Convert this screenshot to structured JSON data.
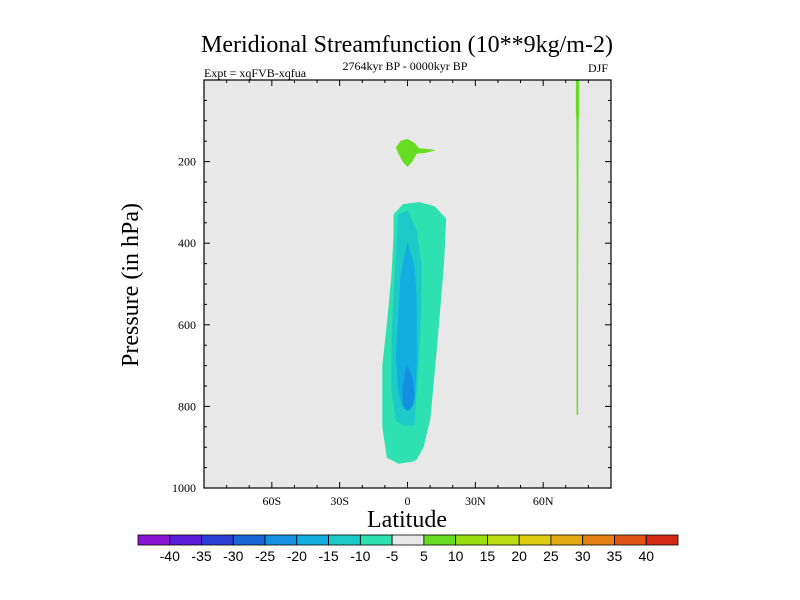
{
  "chart_data": {
    "type": "contour",
    "title": "Meridional Streamfunction (10**9kg/m-2)",
    "subtitle_left": "Expt = xqFVB-xqfua",
    "subtitle_center": "2764kyr BP - 0000kyr BP",
    "subtitle_right": "DJF",
    "xlabel": "Latitude",
    "ylabel": "Pressure (in hPa)",
    "xlim": [
      -90,
      90
    ],
    "ylim": [
      0,
      1000
    ],
    "y_inverted": true,
    "x_ticks": [
      {
        "value": -60,
        "label": "60S"
      },
      {
        "value": -30,
        "label": "30S"
      },
      {
        "value": 0,
        "label": "0"
      },
      {
        "value": 30,
        "label": "30N"
      },
      {
        "value": 60,
        "label": "60N"
      }
    ],
    "y_ticks": [
      {
        "value": 200,
        "label": "200"
      },
      {
        "value": 400,
        "label": "400"
      },
      {
        "value": 600,
        "label": "600"
      },
      {
        "value": 800,
        "label": "800"
      },
      {
        "value": 1000,
        "label": "1000"
      }
    ],
    "background_color": "#e8e8e8",
    "contour_levels": [
      -40,
      -35,
      -30,
      -25,
      -20,
      -15,
      -10,
      -5,
      5,
      10,
      15,
      20,
      25,
      30,
      35,
      40
    ],
    "colorbar_colors": [
      "#8a16d4",
      "#5a1cd6",
      "#2a3ed4",
      "#1a66d9",
      "#1590e0",
      "#12aee0",
      "#1dcac8",
      "#2fe0b0",
      "#e8e8e8",
      "#66dd22",
      "#99dd11",
      "#bbdd11",
      "#dfcc11",
      "#e6aa11",
      "#e48014",
      "#e05515",
      "#d42a14"
    ],
    "regions": [
      {
        "name": "upper-positive-blob",
        "level": "5 to 10",
        "color": "#66dd22",
        "points": [
          [
            -3,
            150
          ],
          [
            0,
            145
          ],
          [
            3,
            155
          ],
          [
            5,
            168
          ],
          [
            9,
            170
          ],
          [
            12,
            172
          ],
          [
            8,
            178
          ],
          [
            4,
            180
          ],
          [
            2,
            200
          ],
          [
            0,
            212
          ],
          [
            -2,
            200
          ],
          [
            -4,
            180
          ],
          [
            -5,
            165
          ]
        ]
      },
      {
        "name": "tropical-negative-cell",
        "level": "-10 to -5",
        "color": "#2fe0b0",
        "points": [
          [
            -6,
            330
          ],
          [
            -2,
            305
          ],
          [
            5,
            300
          ],
          [
            12,
            310
          ],
          [
            17,
            340
          ],
          [
            16,
            450
          ],
          [
            13,
            650
          ],
          [
            10,
            830
          ],
          [
            7,
            900
          ],
          [
            4,
            930
          ],
          [
            2,
            935
          ],
          [
            -4,
            940
          ],
          [
            -9,
            925
          ],
          [
            -11,
            850
          ],
          [
            -11,
            700
          ],
          [
            -9,
            600
          ],
          [
            -7,
            480
          ],
          [
            -6,
            380
          ]
        ]
      },
      {
        "name": "tropical-core-15",
        "level": "-15 to -10",
        "color": "#1dcac8",
        "points": [
          [
            -4,
            330
          ],
          [
            0,
            320
          ],
          [
            4,
            370
          ],
          [
            6,
            450
          ],
          [
            6,
            560
          ],
          [
            5,
            680
          ],
          [
            4,
            760
          ],
          [
            3,
            845
          ],
          [
            -1,
            848
          ],
          [
            -5,
            835
          ],
          [
            -7,
            760
          ],
          [
            -7,
            640
          ],
          [
            -6,
            520
          ],
          [
            -5,
            420
          ]
        ]
      },
      {
        "name": "tropical-core-20",
        "level": "-20 to -15",
        "color": "#12aee0",
        "points": [
          [
            0,
            400
          ],
          [
            3,
            460
          ],
          [
            4,
            540
          ],
          [
            4,
            620
          ],
          [
            4,
            700
          ],
          [
            3,
            790
          ],
          [
            1,
            810
          ],
          [
            -2,
            805
          ],
          [
            -4,
            760
          ],
          [
            -5,
            680
          ],
          [
            -4,
            580
          ],
          [
            -3,
            480
          ]
        ]
      },
      {
        "name": "tropical-core-25",
        "level": "-25 to -20",
        "color": "#1590e0",
        "points": [
          [
            0,
            700
          ],
          [
            2,
            730
          ],
          [
            3,
            770
          ],
          [
            2,
            800
          ],
          [
            0,
            810
          ],
          [
            -2,
            795
          ],
          [
            -2,
            755
          ],
          [
            -1,
            715
          ]
        ]
      },
      {
        "name": "northern-positive-line",
        "level": "5 to 10",
        "color": "#66dd22",
        "points": [
          [
            74.6,
            0
          ],
          [
            75.8,
            0
          ],
          [
            75.8,
            80
          ],
          [
            75.6,
            95
          ],
          [
            75.5,
            250
          ],
          [
            75.4,
            420
          ],
          [
            75.3,
            560
          ],
          [
            75.3,
            820
          ],
          [
            74.9,
            820
          ],
          [
            74.9,
            560
          ],
          [
            74.9,
            420
          ],
          [
            74.9,
            250
          ],
          [
            74.8,
            100
          ],
          [
            74.6,
            80
          ]
        ]
      }
    ]
  }
}
